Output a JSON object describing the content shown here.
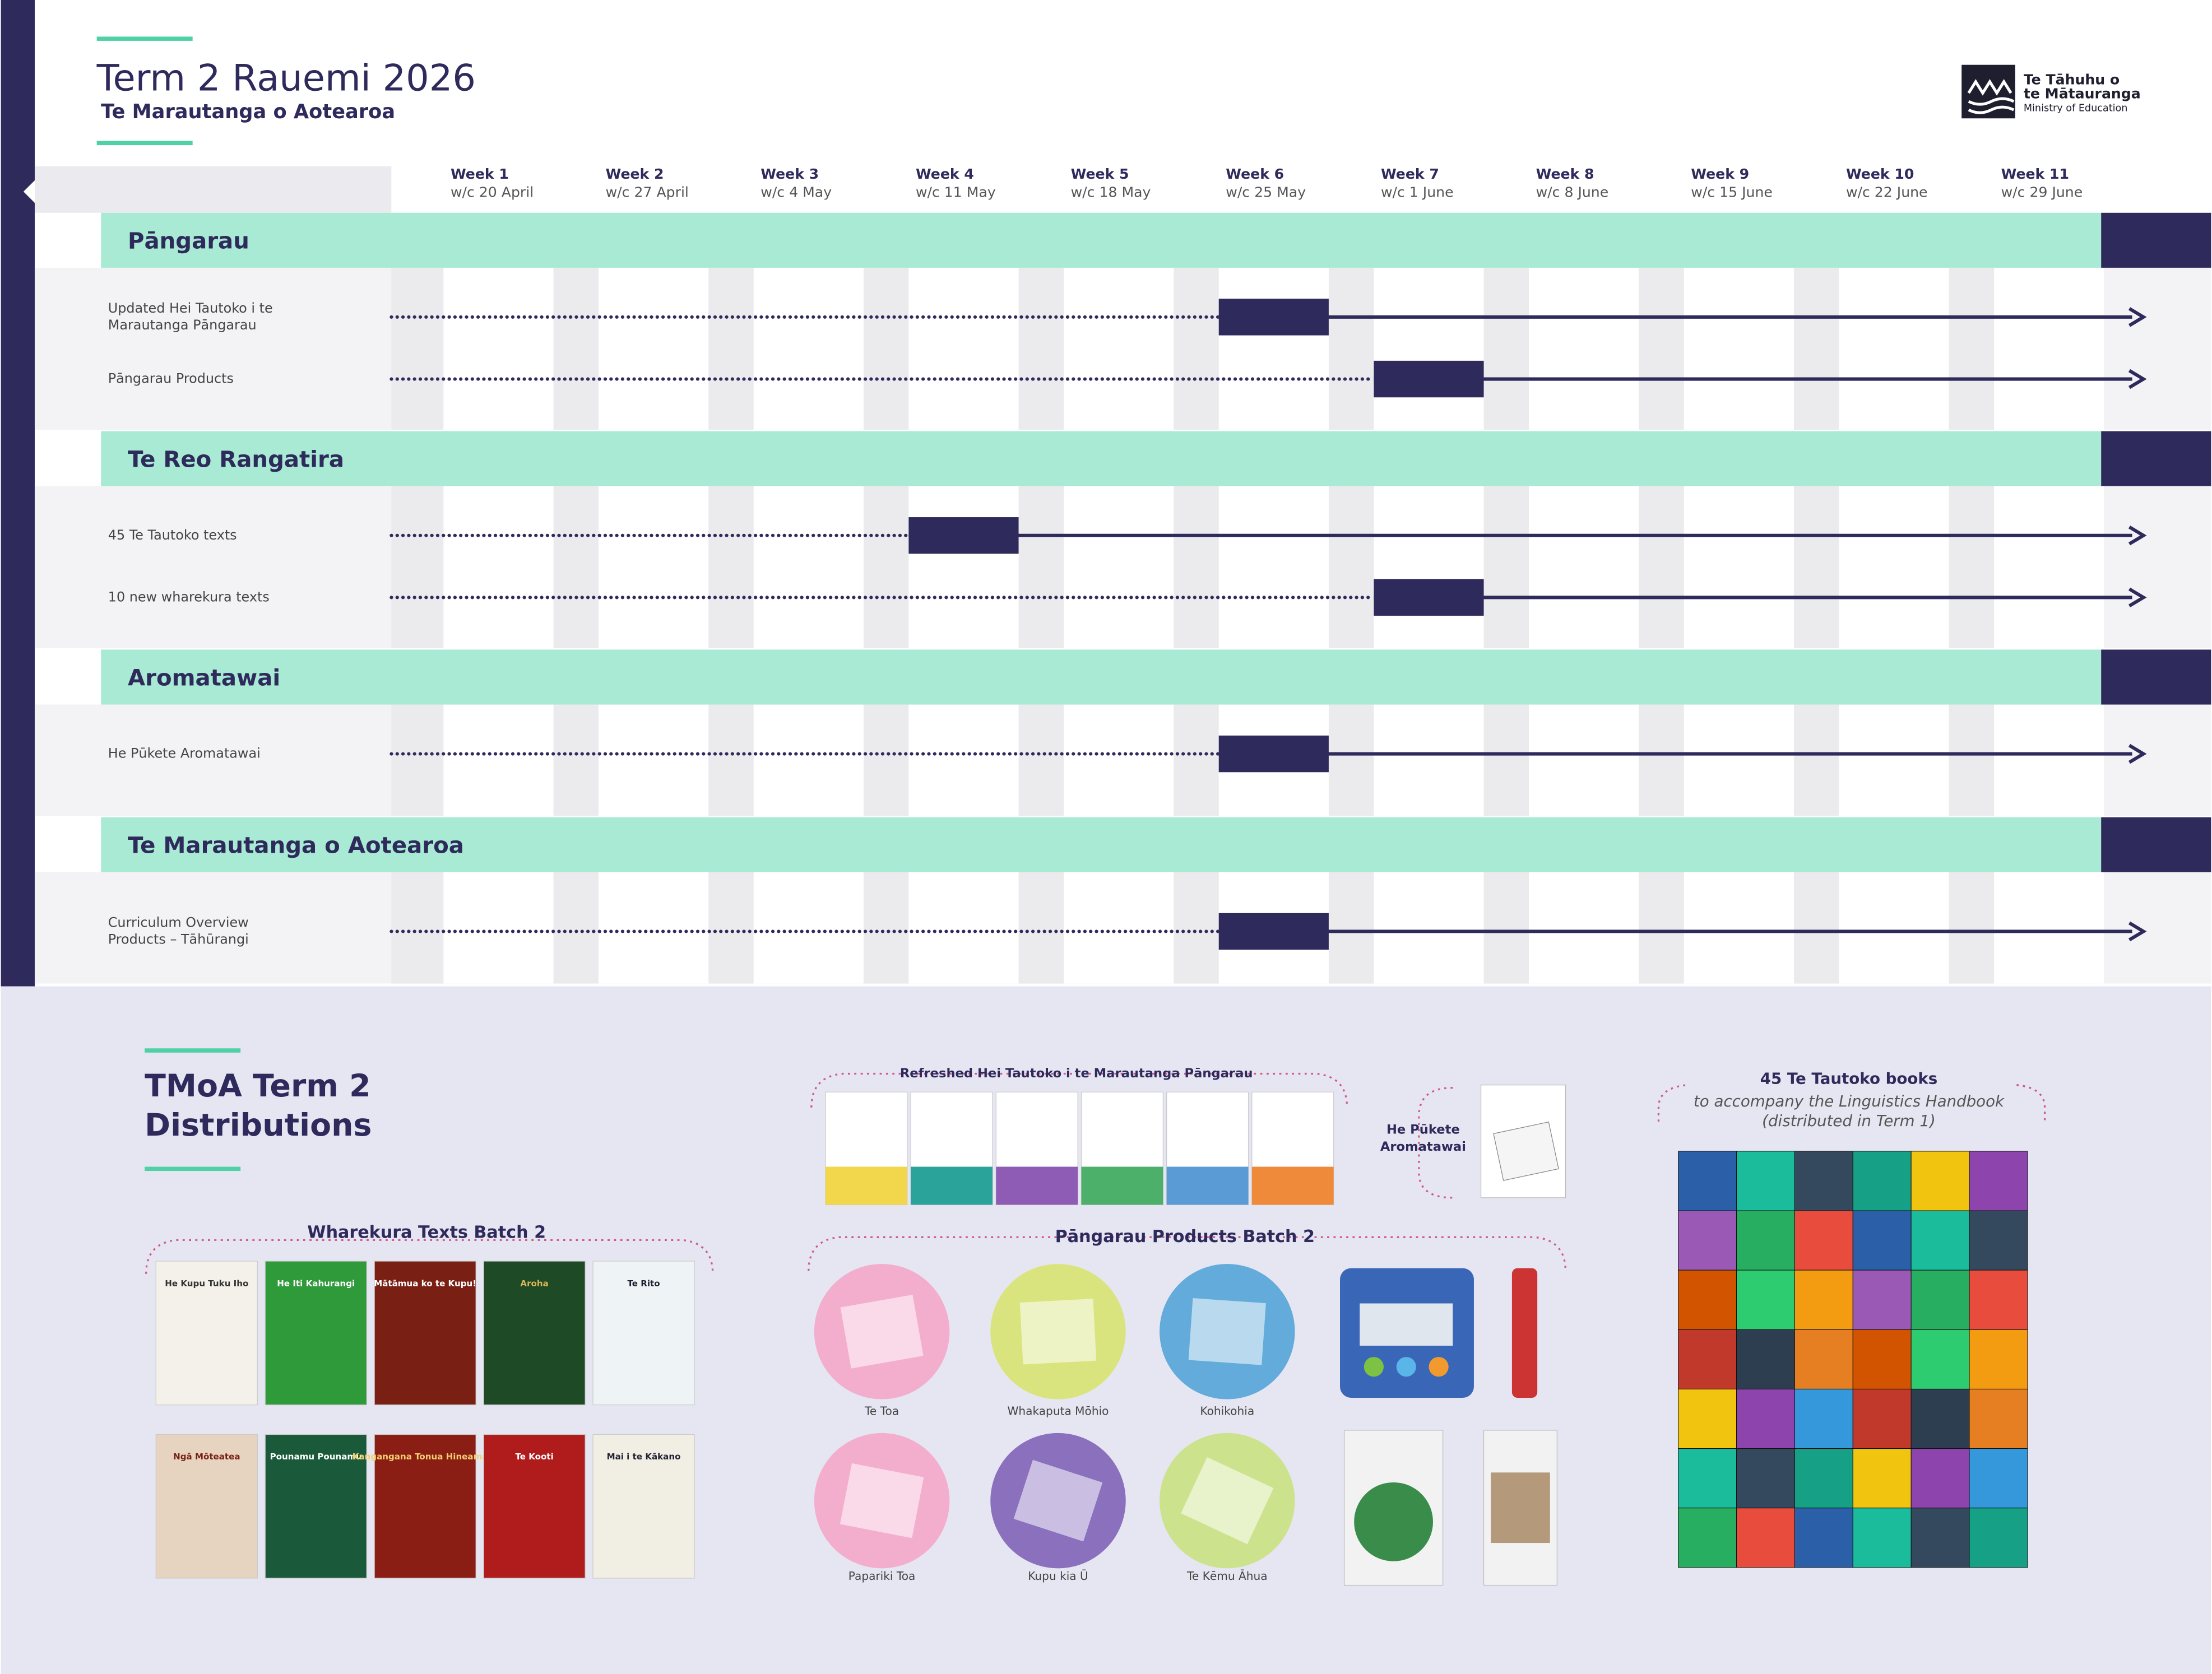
{
  "header": {
    "title": "Term 2 Rauemi 2026",
    "subtitle": "Te Marautanga o Aotearoa",
    "logo": [
      "Te Tāhuhu o",
      "te Mātauranga",
      "Ministry of Education"
    ]
  },
  "weeks": [
    {
      "label": "Week 1",
      "date": "w/c 20 April"
    },
    {
      "label": "Week 2",
      "date": "w/c 27 April"
    },
    {
      "label": "Week 3",
      "date": "w/c 4 May"
    },
    {
      "label": "Week 4",
      "date": "w/c 11 May"
    },
    {
      "label": "Week 5",
      "date": "w/c 18 May"
    },
    {
      "label": "Week 6",
      "date": "w/c 25 May"
    },
    {
      "label": "Week 7",
      "date": "w/c 1 June"
    },
    {
      "label": "Week 8",
      "date": "w/c 8 June"
    },
    {
      "label": "Week 9",
      "date": "w/c 15 June"
    },
    {
      "label": "Week 10",
      "date": "w/c 22 June"
    },
    {
      "label": "Week 11",
      "date": "w/c 29 June"
    }
  ],
  "sections": [
    {
      "title": "Pāngarau",
      "rows": [
        {
          "label": [
            "Updated Hei Tautoko i te",
            "Marautanga Pāngarau"
          ],
          "week": 6
        },
        {
          "label": [
            "Pāngarau Products"
          ],
          "week": 7
        }
      ]
    },
    {
      "title": "Te Reo Rangatira",
      "rows": [
        {
          "label": [
            "45 Te Tautoko texts"
          ],
          "week": 4
        },
        {
          "label": [
            "10 new wharekura texts"
          ],
          "week": 7
        }
      ]
    },
    {
      "title": "Aromatawai",
      "rows": [
        {
          "label": [
            "He Pūkete Aromatawai"
          ],
          "week": 6
        }
      ]
    },
    {
      "title": "Te Marautanga o Aotearoa",
      "rows": [
        {
          "label": [
            "Curriculum Overview",
            "Products – Tāhūrangi"
          ],
          "week": 6
        }
      ]
    }
  ],
  "distributions": {
    "title": [
      "TMoA Term 2",
      "Distributions"
    ],
    "wharekura": {
      "title": "Wharekura Texts Batch 2",
      "books": [
        "He Kupu Tuku Iho",
        "He Iti Kahurangi",
        "Mātāmua ko te Kupu!",
        "Aroha",
        "Te Rito",
        "Ngā Mōteatea",
        "Pounamu Pounamu",
        "Kangangana Tonua Hineamaru",
        "Te Kooti",
        "Mai i te Kākano"
      ]
    },
    "hei_tautoko": {
      "title": "Refreshed Hei Tautoko i te Marautanga Pāngarau"
    },
    "pukete": {
      "title": [
        "He Pūkete",
        "Aromatawai"
      ]
    },
    "products": {
      "title": "Pāngarau Products Batch 2",
      "items": [
        "Te Toa",
        "Whakaputa Mōhio",
        "Kohikohia",
        "Papariki Toa",
        "Kupu kia Ū",
        "Te Kēmu Āhua"
      ]
    },
    "tautoko": {
      "title": "45 Te Tautoko books",
      "subtitle": [
        "to accompany the Linguistics Handbook",
        "(distributed in Term 1)"
      ]
    }
  }
}
